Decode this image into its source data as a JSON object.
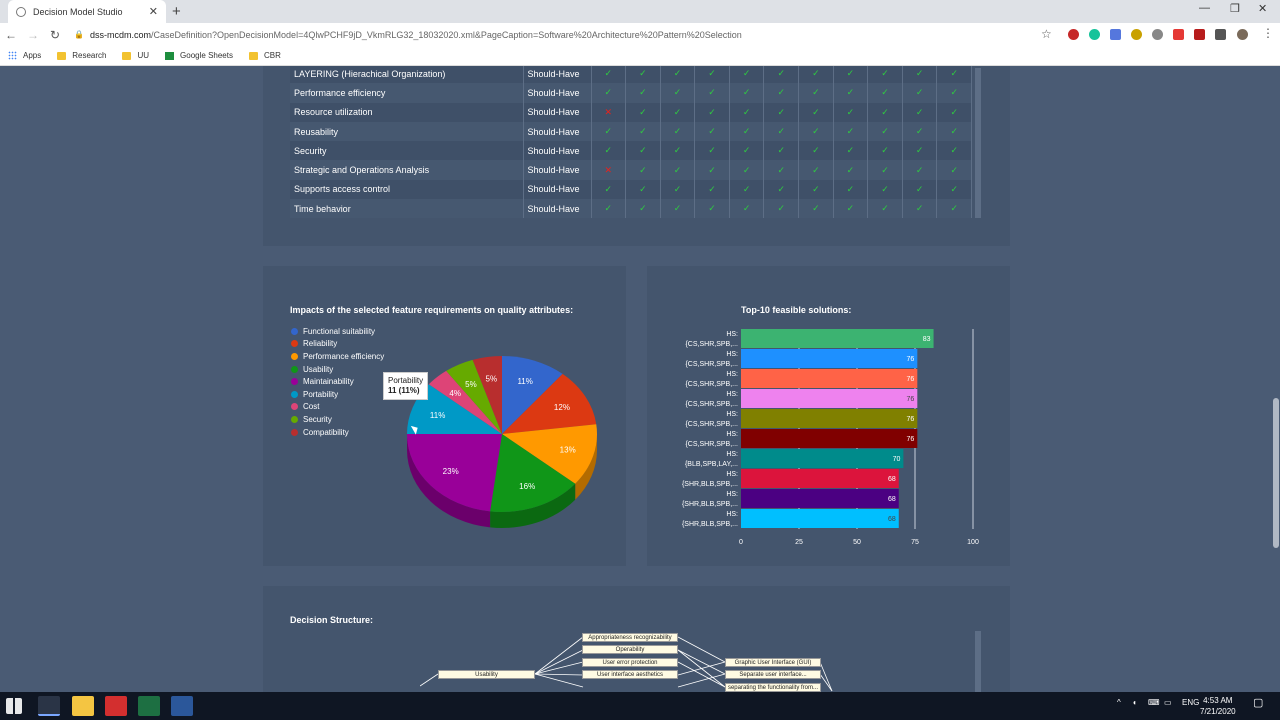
{
  "browser": {
    "tab_title": "Decision Model Studio",
    "url_host": "dss-mcdm.com",
    "url_path": "/CaseDefinition?OpenDecisionModel=4QlwPCHF9jD_VkmRLG32_18032020.xml&PageCaption=Software%20Architecture%20Pattern%20Selection",
    "bookmarks": [
      "Apps",
      "Research",
      "UU",
      "Google Sheets",
      "CBR"
    ]
  },
  "requirements": {
    "rows": [
      {
        "name": "LAYERING (Hierachical Organization)",
        "priority": "Should-Have",
        "marks": [
          "ok",
          "ok",
          "ok",
          "ok",
          "ok",
          "ok",
          "ok",
          "ok",
          "ok",
          "ok",
          "ok"
        ]
      },
      {
        "name": "Performance efficiency",
        "priority": "Should-Have",
        "marks": [
          "ok",
          "ok",
          "ok",
          "ok",
          "ok",
          "ok",
          "ok",
          "ok",
          "ok",
          "ok",
          "ok"
        ]
      },
      {
        "name": "Resource utilization",
        "priority": "Should-Have",
        "marks": [
          "no",
          "ok",
          "ok",
          "ok",
          "ok",
          "ok",
          "ok",
          "ok",
          "ok",
          "ok",
          "ok"
        ]
      },
      {
        "name": "Reusability",
        "priority": "Should-Have",
        "marks": [
          "ok",
          "ok",
          "ok",
          "ok",
          "ok",
          "ok",
          "ok",
          "ok",
          "ok",
          "ok",
          "ok"
        ]
      },
      {
        "name": "Security",
        "priority": "Should-Have",
        "marks": [
          "ok",
          "ok",
          "ok",
          "ok",
          "ok",
          "ok",
          "ok",
          "ok",
          "ok",
          "ok",
          "ok"
        ]
      },
      {
        "name": "Strategic and Operations Analysis",
        "priority": "Should-Have",
        "marks": [
          "no",
          "ok",
          "ok",
          "ok",
          "ok",
          "ok",
          "ok",
          "ok",
          "ok",
          "ok",
          "ok"
        ]
      },
      {
        "name": "Supports access control",
        "priority": "Should-Have",
        "marks": [
          "ok",
          "ok",
          "ok",
          "ok",
          "ok",
          "ok",
          "ok",
          "ok",
          "ok",
          "ok",
          "ok"
        ]
      },
      {
        "name": "Time behavior",
        "priority": "Should-Have",
        "marks": [
          "ok",
          "ok",
          "ok",
          "ok",
          "ok",
          "ok",
          "ok",
          "ok",
          "ok",
          "ok",
          "ok"
        ]
      }
    ],
    "check_glyph": "✓",
    "cross_glyph": "✕"
  },
  "pie": {
    "title": "Impacts of the selected feature requirements on quality attributes:",
    "tooltip_label": "Portability",
    "tooltip_value": "11 (11%)"
  },
  "bar": {
    "title": "Top-10 feasible solutions:"
  },
  "decision": {
    "title": "Decision Structure:",
    "root": "Usability",
    "children": [
      "Appropriateness recognizability",
      "Operability",
      "User error protection",
      "User interface aesthetics"
    ],
    "leaves": [
      "Graphic User Interface (GUI)",
      "Separate user interface...",
      "separating the functionality from..."
    ]
  },
  "taskbar": {
    "lang": "ENG",
    "time": "4:53 AM",
    "date": "7/21/2020"
  },
  "chart_data": [
    {
      "type": "pie",
      "title": "Impacts of the selected feature requirements on quality attributes:",
      "labels": [
        "Functional suitability",
        "Reliability",
        "Performance efficiency",
        "Usability",
        "Maintainability",
        "Portability",
        "Cost",
        "Security",
        "Compatibility"
      ],
      "values": [
        11,
        12,
        13,
        16,
        23,
        11,
        4,
        5,
        5
      ],
      "percent_labels": [
        "11%",
        "12%",
        "13%",
        "16%",
        "23%",
        "11%",
        "4%",
        "5%",
        "5%"
      ],
      "colors": [
        "#3366cc",
        "#dc3912",
        "#ff9900",
        "#109618",
        "#990099",
        "#0099c6",
        "#dd4477",
        "#66aa00",
        "#b82e2e"
      ],
      "legend": "left"
    },
    {
      "type": "bar",
      "orientation": "horizontal",
      "title": "Top-10 feasible solutions:",
      "categories": [
        "HS: {CS,SHR,SPB,...",
        "HS: {CS,SHR,SPB,...",
        "HS: {CS,SHR,SPB,...",
        "HS: {CS,SHR,SPB,...",
        "HS: {CS,SHR,SPB,...",
        "HS: {CS,SHR,SPB,...",
        "HS: {BLB,SPB,LAY,...",
        "HS: {SHR,BLB,SPB,...",
        "HS: {SHR,BLB,SPB,...",
        "HS: {SHR,BLB,SPB,..."
      ],
      "values": [
        83,
        76,
        76,
        76,
        76,
        76,
        70,
        68,
        68,
        68
      ],
      "colors": [
        "#3cb371",
        "#1e90ff",
        "#ff6347",
        "#ee82ee",
        "#808000",
        "#800000",
        "#008b8b",
        "#dc143c",
        "#4b0082",
        "#00bfff"
      ],
      "xlim": [
        0,
        100
      ],
      "xticks": [
        0,
        25,
        50,
        75,
        100
      ]
    }
  ]
}
